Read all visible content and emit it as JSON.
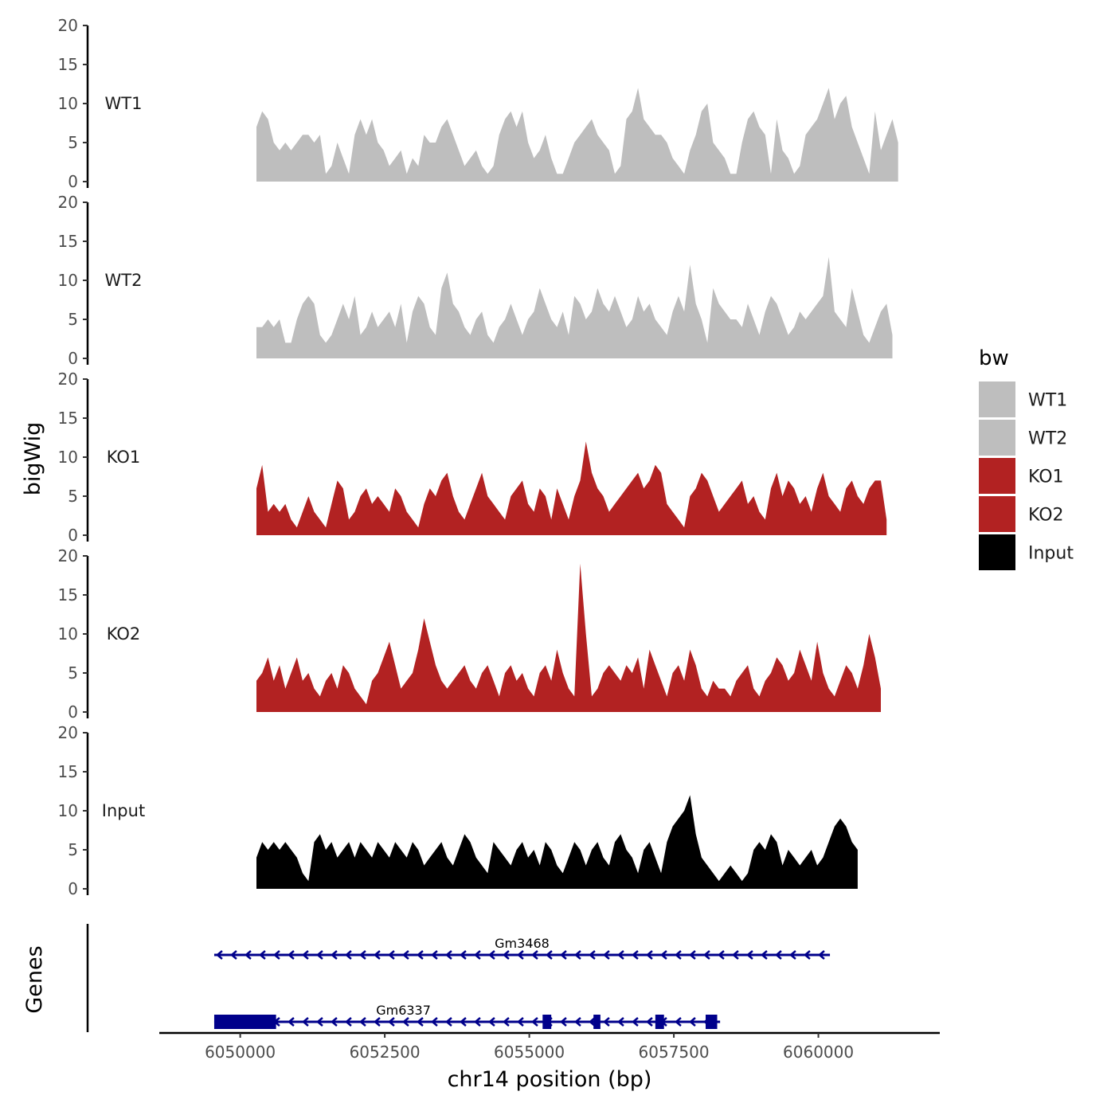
{
  "chart_data": {
    "type": "area",
    "y_axis_title": "bigWig",
    "genes_axis_title": "Genes",
    "x_axis_title": "chr14 position (bp)",
    "xlim": [
      6048600,
      6062100
    ],
    "ylim": [
      0,
      20
    ],
    "y_ticks": [
      0,
      5,
      10,
      15,
      20
    ],
    "x_ticks": [
      6050000,
      6052500,
      6055000,
      6057500,
      6060000
    ],
    "x_tick_labels": [
      "6050000",
      "6052500",
      "6055000",
      "6057500",
      "6060000"
    ],
    "legend": {
      "title": "bw",
      "entries": [
        {
          "label": "WT1",
          "color": "#bebebe"
        },
        {
          "label": "WT2",
          "color": "#bebebe"
        },
        {
          "label": "KO1",
          "color": "#b22222"
        },
        {
          "label": "KO2",
          "color": "#b22222"
        },
        {
          "label": "Input",
          "color": "#000000"
        }
      ]
    },
    "tracks": [
      {
        "name": "WT1",
        "color": "#bebebe",
        "start": 6050280,
        "step": 100,
        "values": [
          7,
          9,
          8,
          5,
          4,
          5,
          4,
          5,
          6,
          6,
          5,
          6,
          1,
          2,
          5,
          3,
          1,
          6,
          8,
          6,
          8,
          5,
          4,
          2,
          3,
          4,
          1,
          3,
          2,
          6,
          5,
          5,
          7,
          8,
          6,
          4,
          2,
          3,
          4,
          2,
          1,
          2,
          6,
          8,
          9,
          7,
          9,
          5,
          3,
          4,
          6,
          3,
          1,
          1,
          3,
          5,
          6,
          7,
          8,
          6,
          5,
          4,
          1,
          2,
          8,
          9,
          12,
          8,
          7,
          6,
          6,
          5,
          3,
          2,
          1,
          4,
          6,
          9,
          10,
          5,
          4,
          3,
          1,
          1,
          5,
          8,
          9,
          7,
          6,
          1,
          8,
          4,
          3,
          1,
          2,
          6,
          7,
          8,
          10,
          12,
          8,
          10,
          11,
          7,
          5,
          3,
          1,
          9,
          4,
          6,
          8,
          5
        ]
      },
      {
        "name": "WT2",
        "color": "#bebebe",
        "start": 6050280,
        "step": 100,
        "values": [
          4,
          4,
          5,
          4,
          5,
          2,
          2,
          5,
          7,
          8,
          7,
          3,
          2,
          3,
          5,
          7,
          5,
          8,
          3,
          4,
          6,
          4,
          5,
          6,
          4,
          7,
          2,
          6,
          8,
          7,
          4,
          3,
          9,
          11,
          7,
          6,
          4,
          3,
          5,
          6,
          3,
          2,
          4,
          5,
          7,
          5,
          3,
          5,
          6,
          9,
          7,
          5,
          4,
          6,
          3,
          8,
          7,
          5,
          6,
          9,
          7,
          6,
          8,
          6,
          4,
          5,
          8,
          6,
          7,
          5,
          4,
          3,
          6,
          8,
          6,
          12,
          7,
          5,
          2,
          9,
          7,
          6,
          5,
          5,
          4,
          7,
          5,
          3,
          6,
          8,
          7,
          5,
          3,
          4,
          6,
          5,
          6,
          7,
          8,
          13,
          6,
          5,
          4,
          9,
          6,
          3,
          2,
          4,
          6,
          7,
          3
        ]
      },
      {
        "name": "KO1",
        "color": "#b22222",
        "start": 6050280,
        "step": 100,
        "values": [
          6,
          9,
          3,
          4,
          3,
          4,
          2,
          1,
          3,
          5,
          3,
          2,
          1,
          4,
          7,
          6,
          2,
          3,
          5,
          6,
          4,
          5,
          4,
          3,
          6,
          5,
          3,
          2,
          1,
          4,
          6,
          5,
          7,
          8,
          5,
          3,
          2,
          4,
          6,
          8,
          5,
          4,
          3,
          2,
          5,
          6,
          7,
          4,
          3,
          6,
          5,
          2,
          6,
          4,
          2,
          5,
          7,
          12,
          8,
          6,
          5,
          3,
          4,
          5,
          6,
          7,
          8,
          6,
          7,
          9,
          8,
          4,
          3,
          2,
          1,
          5,
          6,
          8,
          7,
          5,
          3,
          4,
          5,
          6,
          7,
          4,
          5,
          3,
          2,
          6,
          8,
          5,
          7,
          6,
          4,
          5,
          3,
          6,
          8,
          5,
          4,
          3,
          6,
          7,
          5,
          4,
          6,
          7,
          7,
          2
        ]
      },
      {
        "name": "KO2",
        "color": "#b22222",
        "start": 6050280,
        "step": 100,
        "values": [
          4,
          5,
          7,
          4,
          6,
          3,
          5,
          7,
          4,
          5,
          3,
          2,
          4,
          5,
          3,
          6,
          5,
          3,
          2,
          1,
          4,
          5,
          7,
          9,
          6,
          3,
          4,
          5,
          8,
          12,
          9,
          6,
          4,
          3,
          4,
          5,
          6,
          4,
          3,
          5,
          6,
          4,
          2,
          5,
          6,
          4,
          5,
          3,
          2,
          5,
          6,
          4,
          8,
          5,
          3,
          2,
          19,
          10,
          2,
          3,
          5,
          6,
          5,
          4,
          6,
          5,
          7,
          3,
          8,
          6,
          4,
          2,
          5,
          6,
          4,
          8,
          6,
          3,
          2,
          4,
          3,
          3,
          2,
          4,
          5,
          6,
          3,
          2,
          4,
          5,
          7,
          6,
          4,
          5,
          8,
          6,
          4,
          9,
          5,
          3,
          2,
          4,
          6,
          5,
          3,
          6,
          10,
          7,
          3
        ]
      },
      {
        "name": "Input",
        "color": "#000000",
        "start": 6050280,
        "step": 100,
        "values": [
          4,
          6,
          5,
          6,
          5,
          6,
          5,
          4,
          2,
          1,
          6,
          7,
          5,
          6,
          4,
          5,
          6,
          4,
          6,
          5,
          4,
          6,
          5,
          4,
          6,
          5,
          4,
          6,
          5,
          3,
          4,
          5,
          6,
          4,
          3,
          5,
          7,
          6,
          4,
          3,
          2,
          6,
          5,
          4,
          3,
          5,
          6,
          4,
          5,
          3,
          6,
          5,
          3,
          2,
          4,
          6,
          5,
          3,
          5,
          6,
          4,
          3,
          6,
          7,
          5,
          4,
          2,
          5,
          6,
          4,
          2,
          6,
          8,
          9,
          10,
          12,
          7,
          4,
          3,
          2,
          1,
          2,
          3,
          2,
          1,
          2,
          5,
          6,
          5,
          7,
          6,
          3,
          5,
          4,
          3,
          4,
          5,
          3,
          4,
          6,
          8,
          9,
          8,
          6,
          5
        ]
      }
    ],
    "genes": [
      {
        "name": "Gm3468",
        "strand": "-",
        "start": 6049550,
        "end": 6060200,
        "exons": []
      },
      {
        "name": "Gm6337",
        "strand": "-",
        "start": 6049550,
        "end": 6058300,
        "exons": [
          [
            6049550,
            6050620
          ],
          [
            6055230,
            6055380
          ],
          [
            6056110,
            6056230
          ],
          [
            6057180,
            6057330
          ],
          [
            6058050,
            6058250
          ]
        ]
      }
    ]
  }
}
